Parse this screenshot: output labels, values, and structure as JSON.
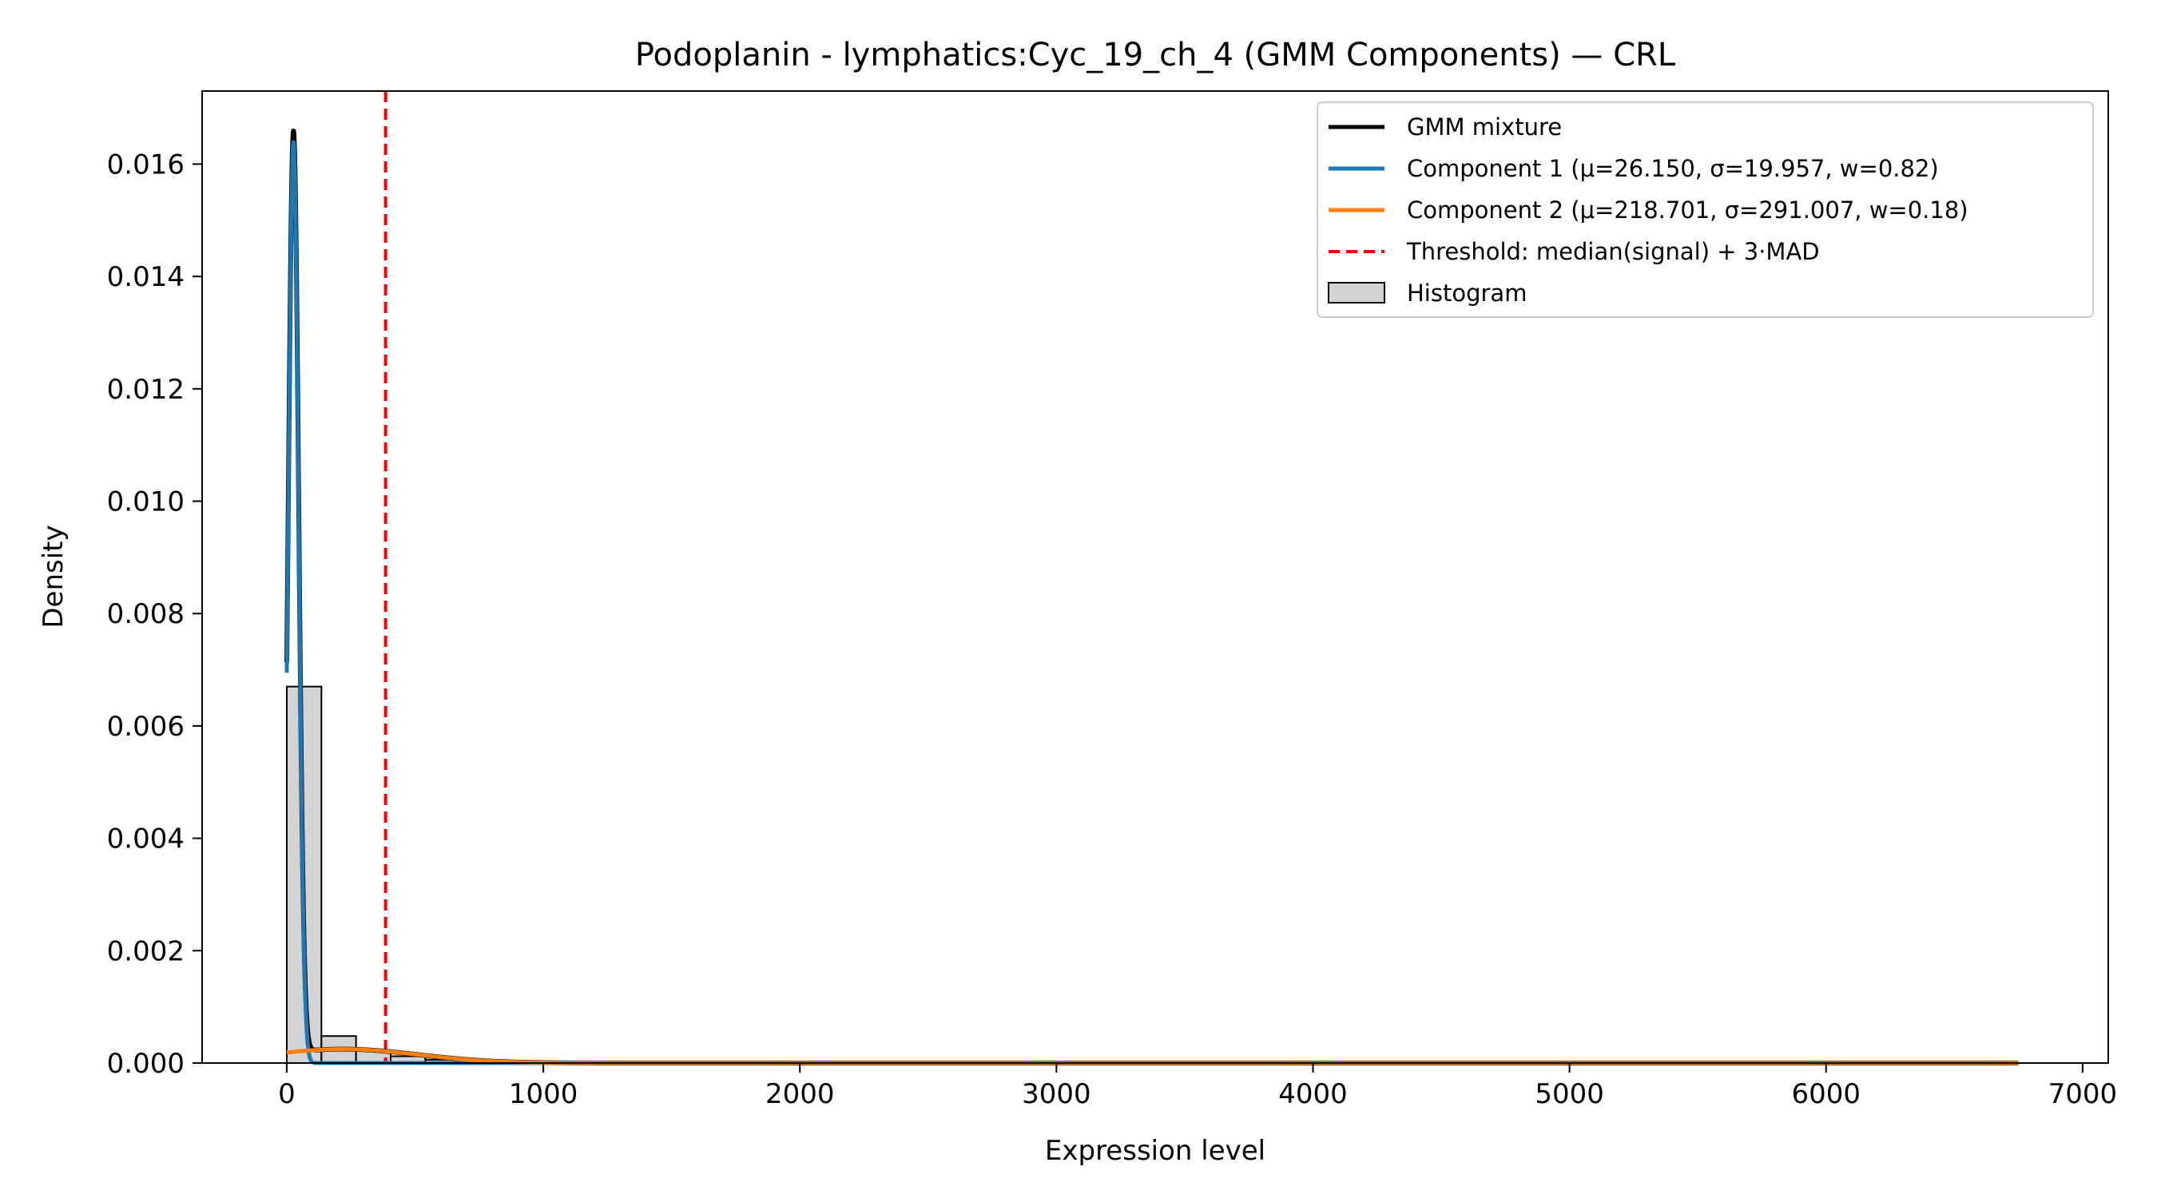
{
  "chart_data": {
    "type": "line",
    "title": "Podoplanin - lymphatics:Cyc_19_ch_4 (GMM Components) — CRL",
    "xlabel": "Expression level",
    "ylabel": "Density",
    "xlim": [
      -330,
      7100
    ],
    "ylim": [
      0,
      0.0173
    ],
    "xticks": [
      0,
      1000,
      2000,
      3000,
      4000,
      5000,
      6000,
      7000
    ],
    "xtick_labels": [
      "0",
      "1000",
      "2000",
      "3000",
      "4000",
      "5000",
      "6000",
      "7000"
    ],
    "yticks": [
      0,
      0.002,
      0.004,
      0.006,
      0.008,
      0.01,
      0.012,
      0.014,
      0.016
    ],
    "ytick_labels": [
      "0.000",
      "0.002",
      "0.004",
      "0.006",
      "0.008",
      "0.010",
      "0.012",
      "0.014",
      "0.016"
    ],
    "grid": false,
    "legend_position": "top-right",
    "curve_x_range": [
      0,
      6750
    ],
    "histogram": {
      "name": "Histogram",
      "bin_edges": [
        0,
        135,
        270,
        405,
        540,
        675,
        810,
        945,
        1080,
        1215,
        1350,
        1485,
        1620,
        1755,
        1890,
        2025,
        2160,
        2295,
        2430,
        2565,
        2700,
        2835,
        2970,
        3105,
        3240,
        3375,
        3510,
        3645,
        3780,
        3915,
        4050,
        4185,
        4320,
        4455,
        4590,
        4725,
        4860,
        4995,
        5130,
        5265,
        5400,
        5535,
        5670,
        5805,
        5940,
        6075,
        6210,
        6345,
        6480,
        6615,
        6750
      ],
      "densities": [
        0.0067,
        0.00048,
        0.00022,
        0.00012,
        6e-05,
        3e-05,
        2e-05,
        1e-05,
        1e-05,
        0,
        0,
        0,
        0,
        0,
        0,
        0,
        0,
        0,
        0,
        0,
        0,
        0,
        0,
        0,
        0,
        0,
        0,
        0,
        0,
        0,
        0,
        0,
        0,
        0,
        0,
        0,
        0,
        0,
        0,
        0,
        0,
        0,
        0,
        0,
        0,
        0,
        0,
        0,
        0,
        0
      ],
      "color": "#d3d3d3"
    },
    "series": [
      {
        "name": "GMM mixture",
        "kind": "mixture",
        "color": "#000000"
      },
      {
        "name": "Component 1 (μ=26.150, σ=19.957, w=0.82)",
        "kind": "gaussian",
        "mu": 26.15,
        "sigma": 19.957,
        "w": 0.82,
        "color": "#1f77b4"
      },
      {
        "name": "Component 2 (μ=218.701, σ=291.007, w=0.18)",
        "kind": "gaussian",
        "mu": 218.701,
        "sigma": 291.007,
        "w": 0.18,
        "color": "#ff7f0e"
      }
    ],
    "threshold": {
      "name": "Threshold: median(signal) + 3·MAD",
      "x": 385,
      "color": "#ff0000"
    }
  }
}
